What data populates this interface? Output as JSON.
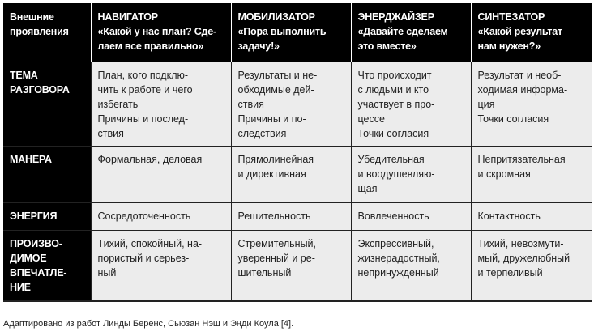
{
  "table": {
    "headers": [
      "Внешние\nпроявления",
      "НАВИГАТОР\n«Какой у нас план? Сде-\nлаем все правильно»",
      "МОБИЛИЗАТОР\n«Пора выполнить\nзадачу!»",
      "ЭНЕРДЖАЙЗЕР\n«Давайте сделаем\nэто вместе»",
      "СИНТЕЗАТОР\n«Какой результат\nнам нужен?»"
    ],
    "rows": [
      {
        "label": "ТЕМА\nРАЗГОВОРА",
        "cells": [
          "План, кого подклю-\nчить к работе и чего\nизбегать\nПричины и послед-\nствия",
          "Результаты и не-\nобходимые дей-\nствия\nПричины и по-\nследствия",
          "Что происходит\nс людьми и кто\nучаствует в про-\nцессе\nТочки согласия",
          "Результат и необ-\nходимая информа-\nция\nТочки согласия"
        ]
      },
      {
        "label": "МАНЕРА",
        "cells": [
          "Формальная, деловая",
          "Прямолинейная\nи директивная",
          "Убедительная\nи воодушевляю-\nщая",
          "Непритязательная\nи скромная"
        ]
      },
      {
        "label": "ЭНЕРГИЯ",
        "cells": [
          "Сосредоточенность",
          "Решительность",
          "Вовлеченность",
          "Контактность"
        ]
      },
      {
        "label": "ПРОИЗВО-\nДИМОЕ\nВПЕЧАТЛЕ-\nНИЕ",
        "cells": [
          "Тихий, спокойный, на-\nпористый и серьез-\nный",
          "Стремительный,\nуверенный и ре-\nшительный",
          "Экспрессивный,\nжизнерадостный,\nнепринужденный",
          "Тихий, невозмути-\nмый, дружелюбный\nи терпеливый"
        ]
      }
    ]
  },
  "caption": "Адаптировано из работ Линды Беренс, Сьюзан Нэш и Энди Коула [4]."
}
